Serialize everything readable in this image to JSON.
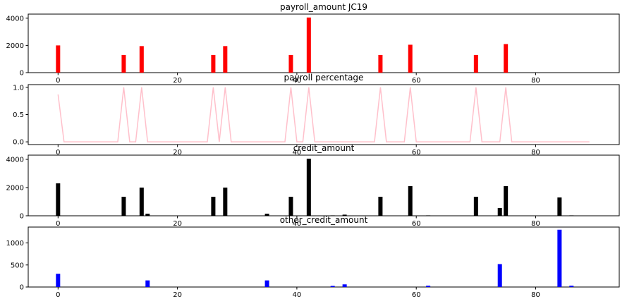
{
  "chart_data": [
    {
      "type": "bar",
      "title": "payroll_amount JC19",
      "color": "#ff0000",
      "xlim": [
        -5,
        94
      ],
      "ylim": [
        0,
        4300
      ],
      "xticks": [
        0,
        20,
        40,
        60,
        80
      ],
      "xtick_labels": [
        "0",
        "20",
        "40",
        "60",
        "80"
      ],
      "yticks": [
        0,
        2000,
        4000
      ],
      "ytick_labels": [
        "0",
        "2000",
        "4000"
      ],
      "points": [
        {
          "x": 0,
          "y": 2000
        },
        {
          "x": 11,
          "y": 1300
        },
        {
          "x": 14,
          "y": 1950
        },
        {
          "x": 26,
          "y": 1300
        },
        {
          "x": 28,
          "y": 1950
        },
        {
          "x": 39,
          "y": 1300
        },
        {
          "x": 42,
          "y": 4050
        },
        {
          "x": 54,
          "y": 1300
        },
        {
          "x": 59,
          "y": 2050
        },
        {
          "x": 70,
          "y": 1300
        },
        {
          "x": 75,
          "y": 2100
        }
      ]
    },
    {
      "type": "line",
      "title": "payroll percentage",
      "color": "#ffc0cb",
      "xlim": [
        -5,
        94
      ],
      "ylim": [
        -0.05,
        1.05
      ],
      "xticks": [
        0,
        20,
        40,
        60,
        80
      ],
      "xtick_labels": [
        "0",
        "20",
        "40",
        "60",
        "80"
      ],
      "yticks": [
        0,
        0.5,
        1.0
      ],
      "ytick_labels": [
        "0.0",
        "0.5",
        "1.0"
      ],
      "points": [
        {
          "x": 0,
          "y": 0.87
        },
        {
          "x": 1,
          "y": 0
        },
        {
          "x": 10,
          "y": 0
        },
        {
          "x": 11,
          "y": 1
        },
        {
          "x": 12,
          "y": 0
        },
        {
          "x": 13,
          "y": 0
        },
        {
          "x": 14,
          "y": 1
        },
        {
          "x": 15,
          "y": 0
        },
        {
          "x": 25,
          "y": 0
        },
        {
          "x": 26,
          "y": 1
        },
        {
          "x": 27,
          "y": 0
        },
        {
          "x": 28,
          "y": 1
        },
        {
          "x": 29,
          "y": 0
        },
        {
          "x": 38,
          "y": 0
        },
        {
          "x": 39,
          "y": 1
        },
        {
          "x": 40,
          "y": 0
        },
        {
          "x": 41,
          "y": 0
        },
        {
          "x": 42,
          "y": 1
        },
        {
          "x": 43,
          "y": 0
        },
        {
          "x": 53,
          "y": 0
        },
        {
          "x": 54,
          "y": 1
        },
        {
          "x": 55,
          "y": 0
        },
        {
          "x": 58,
          "y": 0
        },
        {
          "x": 59,
          "y": 1
        },
        {
          "x": 60,
          "y": 0
        },
        {
          "x": 69,
          "y": 0
        },
        {
          "x": 70,
          "y": 1
        },
        {
          "x": 71,
          "y": 0
        },
        {
          "x": 74,
          "y": 0
        },
        {
          "x": 75,
          "y": 1
        },
        {
          "x": 76,
          "y": 0
        },
        {
          "x": 89,
          "y": 0
        }
      ]
    },
    {
      "type": "bar",
      "title": "credit_amount",
      "color": "#000000",
      "xlim": [
        -5,
        94
      ],
      "ylim": [
        0,
        4300
      ],
      "xticks": [
        0,
        20,
        40,
        60,
        80
      ],
      "xtick_labels": [
        "0",
        "20",
        "40",
        "60",
        "80"
      ],
      "yticks": [
        0,
        2000,
        4000
      ],
      "ytick_labels": [
        "0",
        "2000",
        "4000"
      ],
      "points": [
        {
          "x": 0,
          "y": 2300
        },
        {
          "x": 11,
          "y": 1350
        },
        {
          "x": 14,
          "y": 2000
        },
        {
          "x": 15,
          "y": 150
        },
        {
          "x": 26,
          "y": 1350
        },
        {
          "x": 28,
          "y": 2000
        },
        {
          "x": 35,
          "y": 150
        },
        {
          "x": 39,
          "y": 1350
        },
        {
          "x": 42,
          "y": 4050
        },
        {
          "x": 46,
          "y": 30
        },
        {
          "x": 48,
          "y": 80
        },
        {
          "x": 54,
          "y": 1350
        },
        {
          "x": 59,
          "y": 2100
        },
        {
          "x": 62,
          "y": 30
        },
        {
          "x": 70,
          "y": 1350
        },
        {
          "x": 74,
          "y": 550
        },
        {
          "x": 75,
          "y": 2100
        },
        {
          "x": 84,
          "y": 1300
        },
        {
          "x": 86,
          "y": 30
        }
      ]
    },
    {
      "type": "bar",
      "title": "other_credit_amount",
      "color": "#0000ff",
      "xlim": [
        -5,
        94
      ],
      "ylim": [
        0,
        1360
      ],
      "xticks": [
        0,
        20,
        40,
        60,
        80
      ],
      "xtick_labels": [
        "0",
        "20",
        "40",
        "60",
        "80"
      ],
      "yticks": [
        0,
        500,
        1000
      ],
      "ytick_labels": [
        "0",
        "500",
        "1000"
      ],
      "points": [
        {
          "x": 0,
          "y": 300
        },
        {
          "x": 15,
          "y": 150
        },
        {
          "x": 35,
          "y": 150
        },
        {
          "x": 46,
          "y": 25
        },
        {
          "x": 48,
          "y": 60
        },
        {
          "x": 62,
          "y": 30
        },
        {
          "x": 74,
          "y": 520
        },
        {
          "x": 84,
          "y": 1300
        },
        {
          "x": 86,
          "y": 30
        }
      ]
    }
  ]
}
